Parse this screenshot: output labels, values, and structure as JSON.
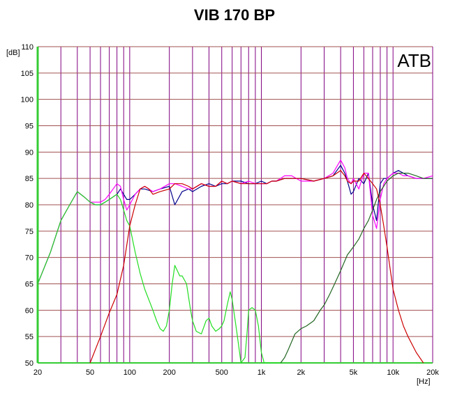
{
  "chart_data": {
    "type": "line",
    "title": "VIB 170 BP",
    "annotation": "ATB",
    "xlabel": "[Hz]",
    "ylabel": "[dB]",
    "x_scale": "log",
    "xlim": [
      20,
      20000
    ],
    "ylim": [
      50,
      110
    ],
    "grid": true,
    "x_ticks": [
      {
        "value": 20,
        "label": "20"
      },
      {
        "value": 50,
        "label": "50"
      },
      {
        "value": 100,
        "label": "100"
      },
      {
        "value": 200,
        "label": "200"
      },
      {
        "value": 500,
        "label": "500"
      },
      {
        "value": 1000,
        "label": "1k"
      },
      {
        "value": 2000,
        "label": "2k"
      },
      {
        "value": 5000,
        "label": "5k"
      },
      {
        "value": 10000,
        "label": "10k"
      },
      {
        "value": 20000,
        "label": "20k"
      }
    ],
    "y_ticks": [
      {
        "value": 110,
        "label": "110"
      },
      {
        "value": 105,
        "label": "105"
      },
      {
        "value": 100,
        "label": "100"
      },
      {
        "value": 95,
        "label": "95"
      },
      {
        "value": 90,
        "label": "90"
      },
      {
        "value": 85,
        "label": "85"
      },
      {
        "value": 80,
        "label": "80"
      },
      {
        "value": 75,
        "label": "75"
      },
      {
        "value": 70,
        "label": "70"
      },
      {
        "value": 65,
        "label": "65"
      },
      {
        "value": 60,
        "label": "60"
      },
      {
        "value": 55,
        "label": "55"
      },
      {
        "value": 50,
        "label": "50"
      }
    ],
    "colors": {
      "grid_vertical": "#800080",
      "grid_horizontal": "#a05050",
      "left_axis": "#33cc33",
      "bottom_axis": "#33cc33",
      "blue": "#00008b",
      "magenta": "#ff00ff",
      "green": "#22dd22",
      "darkgreen": "#226622",
      "red": "#cc0000"
    },
    "series": [
      {
        "color": "#00008b",
        "x": [
          20,
          25,
          30,
          35,
          40,
          45,
          50,
          55,
          60,
          65,
          70,
          80,
          85,
          90,
          95,
          100,
          110,
          120,
          130,
          150,
          170,
          200,
          220,
          250,
          280,
          300,
          350,
          400,
          450,
          500,
          550,
          600,
          700,
          800,
          900,
          1000,
          1100,
          1200,
          1300,
          1500,
          1700,
          2000,
          2500,
          3000,
          3500,
          4000,
          4300,
          4500,
          4800,
          5000,
          5500,
          6000,
          6500,
          7000,
          7500,
          8000,
          8500,
          9000,
          10000,
          11000,
          12000,
          13000,
          15000,
          17000,
          20000
        ],
        "y": [
          65,
          71,
          77,
          80,
          82.5,
          81.5,
          80.5,
          80,
          80,
          80.5,
          81,
          82,
          83,
          82,
          81,
          81,
          82,
          83,
          83,
          82.5,
          83,
          83.5,
          80,
          82.5,
          83,
          82.5,
          83.5,
          84,
          83.5,
          84,
          84,
          84.5,
          84.5,
          84,
          84,
          84.5,
          84,
          84.5,
          84.5,
          85,
          85,
          85,
          84.5,
          85,
          85.5,
          87.5,
          86,
          84.5,
          82,
          82.5,
          85,
          84,
          86,
          80,
          77,
          84,
          85,
          85,
          86,
          86.5,
          86,
          85.5,
          85,
          85,
          85
        ]
      },
      {
        "color": "#ff00ff",
        "x": [
          20,
          25,
          30,
          35,
          40,
          45,
          50,
          55,
          60,
          65,
          70,
          80,
          85,
          90,
          95,
          100,
          110,
          120,
          130,
          150,
          170,
          200,
          220,
          250,
          280,
          300,
          350,
          400,
          450,
          500,
          550,
          600,
          700,
          800,
          900,
          1000,
          1100,
          1200,
          1300,
          1500,
          1700,
          2000,
          2500,
          3000,
          3500,
          4000,
          4300,
          4500,
          4800,
          5000,
          5500,
          6000,
          6500,
          7000,
          7500,
          8000,
          8500,
          9000,
          10000,
          11000,
          12000,
          13000,
          15000,
          17000,
          20000
        ],
        "y": [
          65,
          71,
          77,
          80,
          82.5,
          81.5,
          80.5,
          80.5,
          80.5,
          81,
          82,
          84,
          83.5,
          81,
          79,
          80,
          82,
          83,
          83.5,
          82.5,
          83,
          84,
          84,
          83.5,
          83,
          83,
          84,
          83.5,
          83.5,
          84.5,
          84,
          84.5,
          84,
          84.5,
          84,
          84,
          84,
          84.5,
          84.5,
          85.5,
          85.5,
          84.5,
          84.5,
          85,
          86,
          88.5,
          87,
          85,
          84,
          85,
          83,
          86,
          86,
          78,
          75.5,
          81,
          84,
          85,
          86,
          86,
          85.5,
          85.5,
          85,
          85,
          85.5
        ]
      },
      {
        "color": "#22dd22",
        "x": [
          20,
          25,
          30,
          35,
          40,
          45,
          50,
          55,
          60,
          65,
          70,
          80,
          85,
          90,
          95,
          100,
          110,
          120,
          130,
          150,
          160,
          170,
          180,
          190,
          200,
          210,
          220,
          230,
          240,
          250,
          270,
          290,
          300,
          320,
          350,
          380,
          400,
          420,
          450,
          480,
          500,
          520,
          550,
          580,
          600,
          650,
          700,
          750,
          780,
          800,
          850,
          900,
          950,
          1000,
          1050,
          1100,
          1150,
          1200,
          1250,
          1300,
          1350,
          1400
        ],
        "y": [
          65,
          71,
          77,
          80,
          82.5,
          81.5,
          80.5,
          80,
          80,
          80.5,
          81,
          82,
          81,
          79,
          77,
          76,
          71,
          67,
          64,
          60,
          58,
          56.5,
          56,
          57,
          60,
          65,
          68.5,
          67.5,
          66.5,
          66.5,
          65,
          60,
          58,
          56,
          55.5,
          58,
          58.5,
          57,
          56,
          56.5,
          57,
          58,
          61,
          63.5,
          62,
          56,
          50,
          51,
          56,
          60,
          60.5,
          60,
          57,
          52,
          50,
          50,
          50,
          50,
          50,
          50,
          50,
          50
        ]
      },
      {
        "color": "#226622",
        "x": [
          1400,
          1500,
          1600,
          1800,
          2000,
          2200,
          2500,
          2800,
          3000,
          3300,
          3600,
          4000,
          4500,
          5000,
          5500,
          6000,
          6500,
          7000,
          7500,
          8000,
          9000,
          10000,
          11000,
          12000,
          13000,
          15000,
          17000,
          20000
        ],
        "y": [
          50,
          51,
          52.5,
          55.5,
          56.5,
          57,
          58,
          60,
          61,
          63,
          65,
          67.5,
          70.5,
          72,
          73.5,
          75.5,
          77,
          79,
          81,
          82.5,
          84.5,
          85.5,
          86,
          86,
          86,
          85.5,
          85,
          85
        ]
      },
      {
        "color": "#cc0000",
        "x": [
          50,
          60,
          70,
          80,
          90,
          100,
          110,
          120,
          130,
          140,
          150,
          170,
          200,
          220,
          250,
          280,
          300,
          350,
          400,
          450,
          500,
          550,
          600,
          700,
          800,
          900,
          1000,
          1100,
          1200,
          1300,
          1500,
          1700,
          2000,
          2500,
          3000,
          3500,
          4000,
          4300,
          4500,
          4800,
          5000,
          5500,
          6000,
          6500,
          7000,
          7500,
          8000,
          8500,
          9000,
          10000,
          11000,
          12000,
          13000,
          15000,
          17000
        ],
        "y": [
          50,
          55,
          59.5,
          63,
          68.5,
          76,
          80,
          83,
          83.5,
          83,
          82,
          82.5,
          83,
          84,
          84,
          83.5,
          83,
          84,
          83.5,
          83.5,
          84.5,
          84,
          84.5,
          84,
          84,
          84,
          84,
          84,
          84.5,
          84.5,
          85,
          85,
          85,
          84.5,
          85,
          85.5,
          86.5,
          85.5,
          84.5,
          84,
          84.5,
          84.5,
          86,
          85,
          84,
          83,
          80,
          76,
          72,
          64,
          60,
          57,
          55,
          52,
          50
        ]
      }
    ]
  }
}
